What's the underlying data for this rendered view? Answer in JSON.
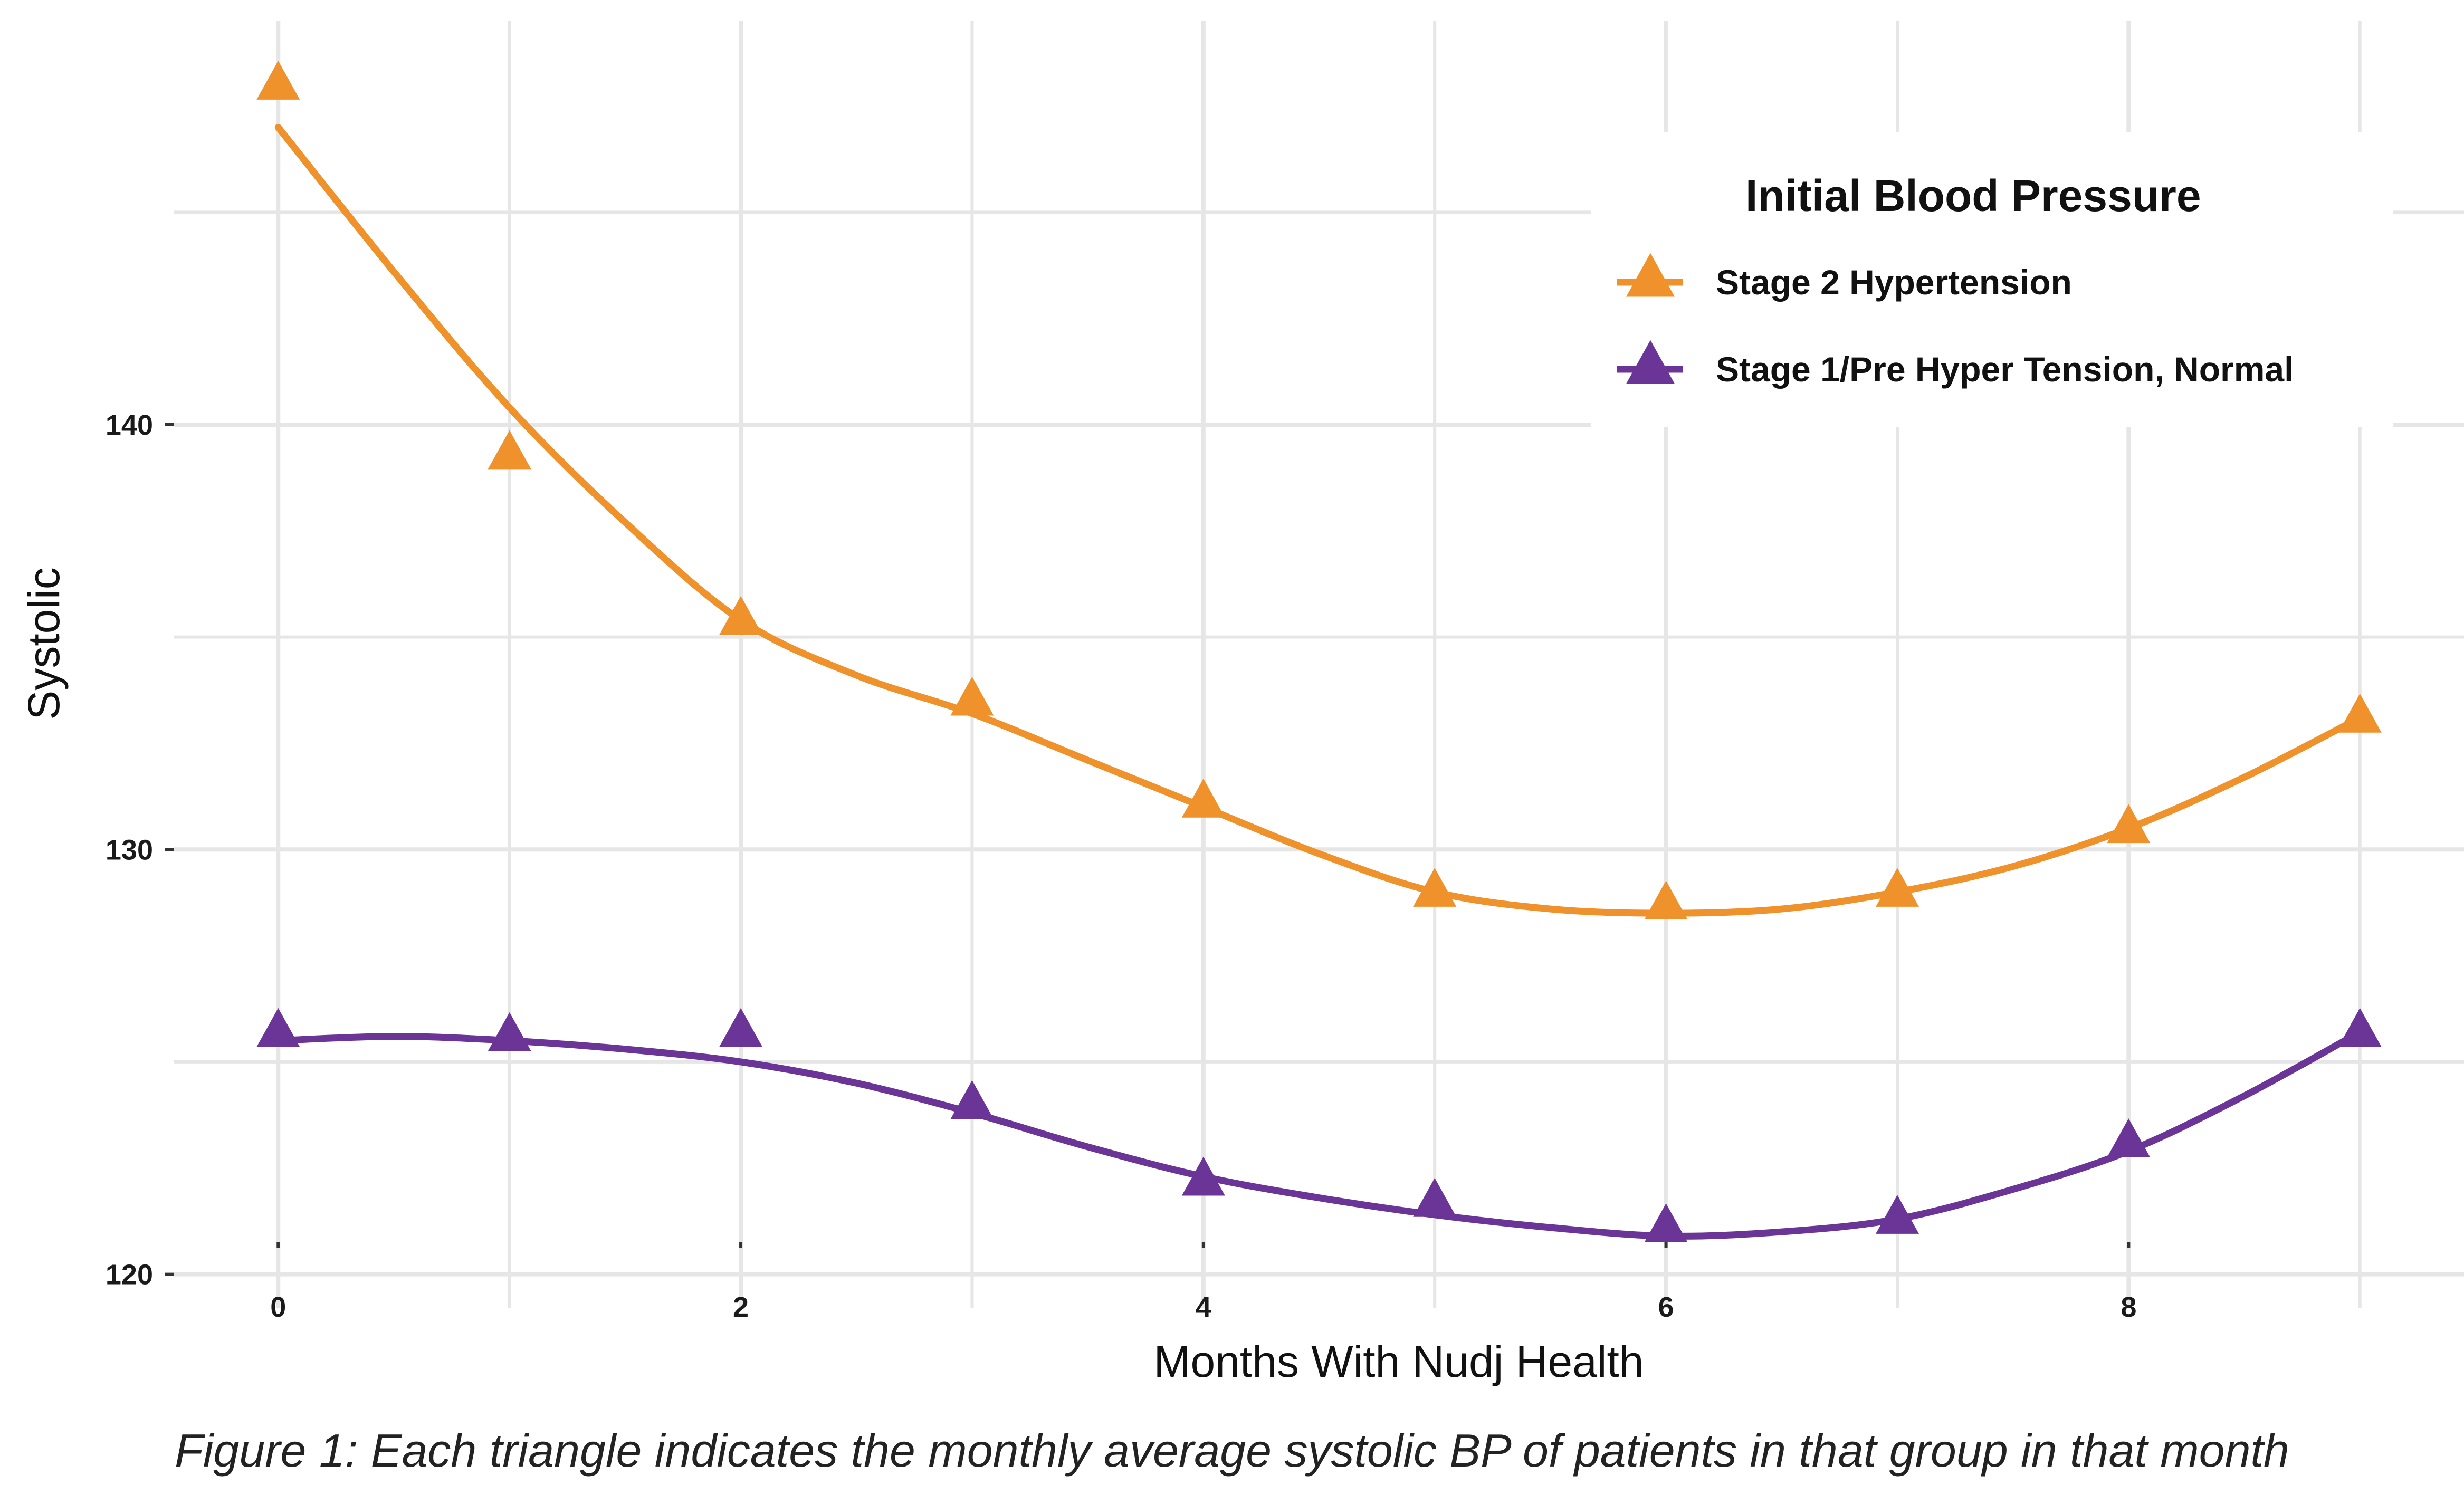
{
  "chart_data": {
    "type": "line",
    "xlabel": "Months With Nudj Health",
    "ylabel": "Systolic",
    "xlim": [
      -0.45,
      9.45
    ],
    "ylim": [
      119.2,
      149.5
    ],
    "x_ticks": [
      0,
      2,
      4,
      6,
      8
    ],
    "y_ticks": [
      120,
      130,
      140
    ],
    "grid": true,
    "legend": {
      "title": "Initial Blood Pressure",
      "position": "top-right"
    },
    "marker": "triangle",
    "series": [
      {
        "name": "Stage 2 Hypertension",
        "color": "#F0922B",
        "points_x": [
          0,
          1,
          2,
          3,
          4,
          5,
          6,
          7,
          8,
          9
        ],
        "points_y": [
          148.0,
          139.3,
          135.4,
          133.5,
          131.1,
          129.0,
          128.7,
          129.0,
          130.5,
          133.1
        ],
        "smooth_x": [
          0,
          0.5,
          1,
          1.5,
          2,
          2.5,
          3,
          3.5,
          4,
          4.5,
          5,
          5.5,
          6,
          6.5,
          7,
          7.5,
          8,
          8.5,
          9
        ],
        "smooth_y": [
          147.0,
          143.6,
          140.4,
          137.7,
          135.4,
          134.1,
          133.2,
          132.1,
          131.0,
          129.9,
          129.0,
          128.6,
          128.5,
          128.6,
          129.0,
          129.6,
          130.5,
          131.7,
          133.1
        ]
      },
      {
        "name": "Stage 1/Pre Hyper Tension, Normal",
        "color": "#6A3596",
        "points_x": [
          0,
          1,
          2,
          3,
          4,
          5,
          6,
          7,
          8,
          9
        ],
        "points_y": [
          125.7,
          125.6,
          125.7,
          124.0,
          122.2,
          121.7,
          121.1,
          121.3,
          123.1,
          125.7
        ],
        "smooth_x": [
          0,
          0.5,
          1,
          1.5,
          2,
          2.5,
          3,
          3.5,
          4,
          4.5,
          5,
          5.5,
          6,
          6.5,
          7,
          7.5,
          8,
          8.5,
          9
        ],
        "smooth_y": [
          125.5,
          125.6,
          125.5,
          125.3,
          125.0,
          124.5,
          123.8,
          123.0,
          122.3,
          121.8,
          121.4,
          121.1,
          120.9,
          121.0,
          121.3,
          122.0,
          122.9,
          124.2,
          125.7
        ]
      }
    ]
  },
  "caption": "Figure 1: Each triangle indicates the monthly average systolic BP of patients in that group in that month"
}
